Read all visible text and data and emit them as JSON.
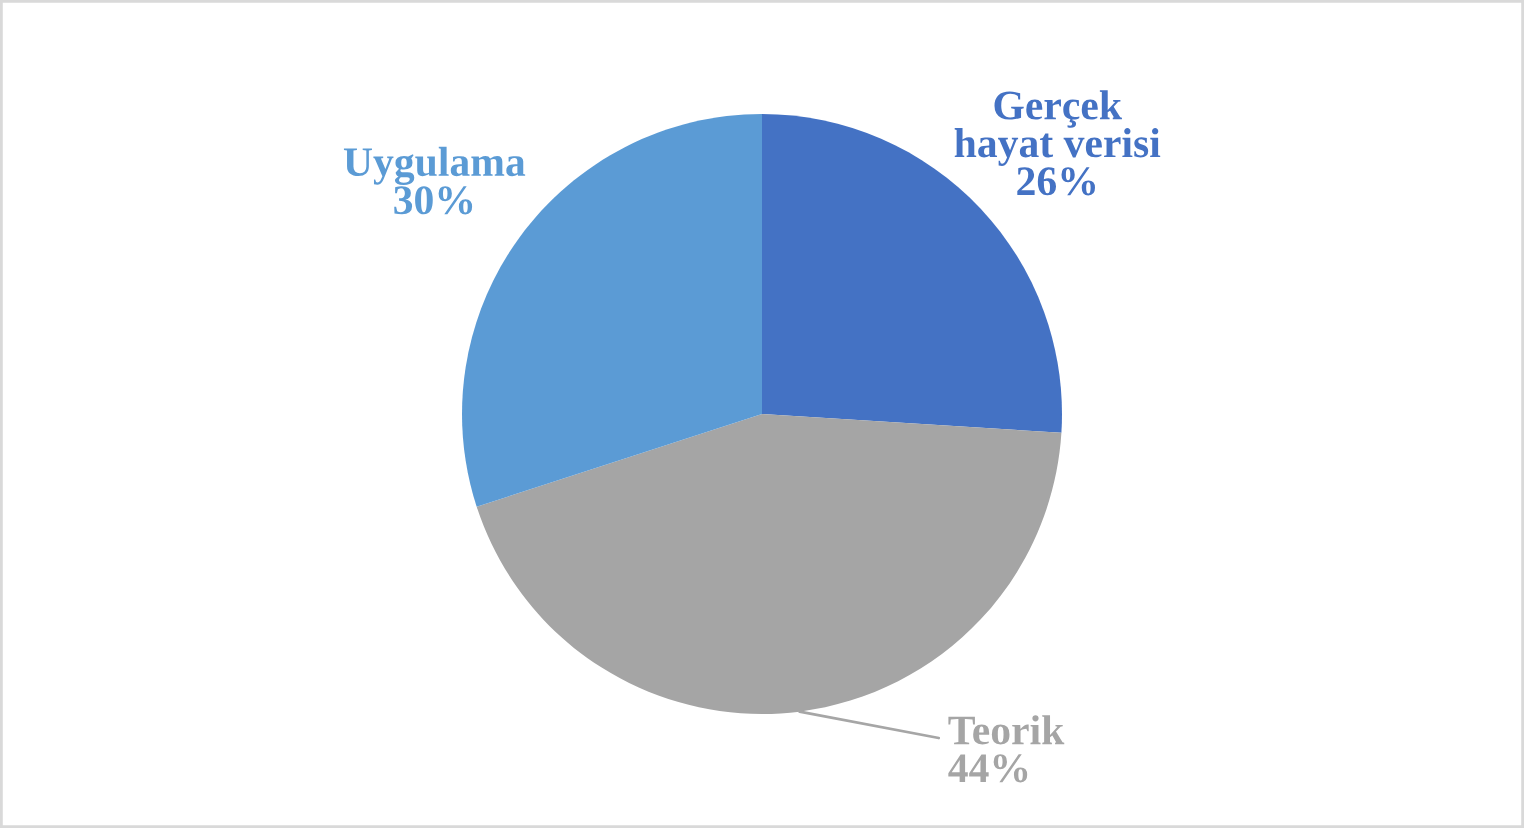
{
  "chart_data": {
    "type": "pie",
    "categories": [
      "Gerçek hayat verisi",
      "Teorik",
      "Uygulama"
    ],
    "values": [
      26,
      44,
      30
    ],
    "colors": [
      "#4472c4",
      "#a5a5a5",
      "#5b9bd5"
    ],
    "value_labels": [
      "26%",
      "44%",
      "30%"
    ],
    "legend": false
  }
}
